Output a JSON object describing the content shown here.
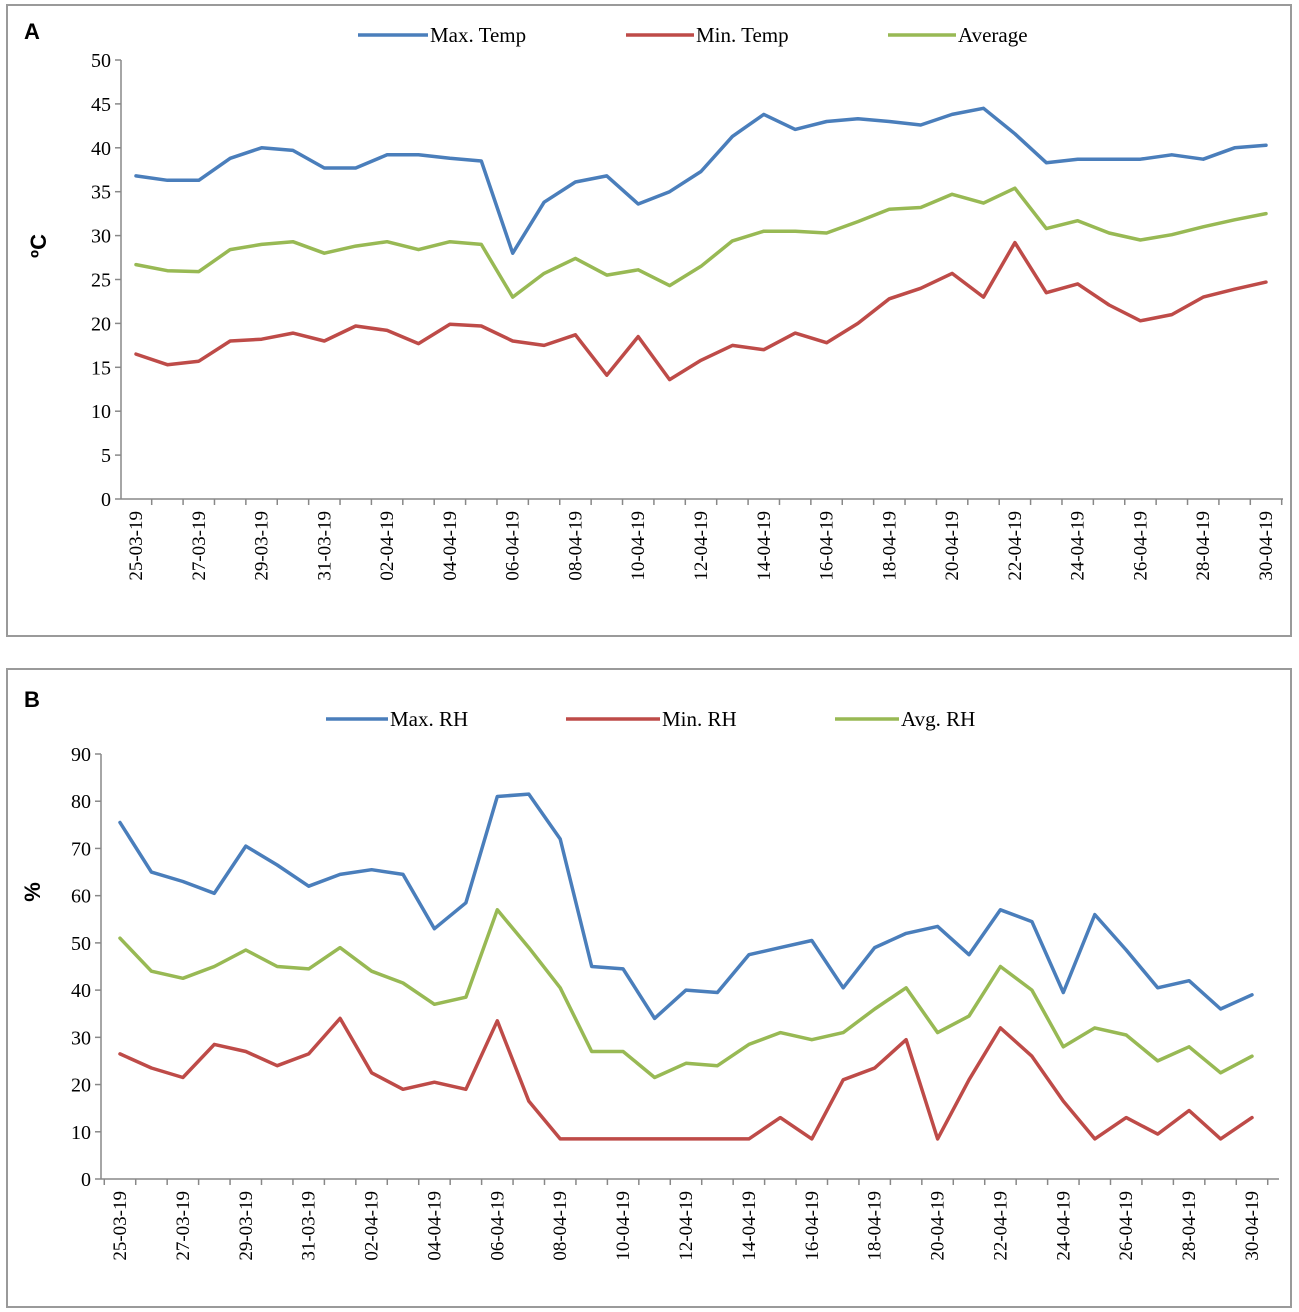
{
  "colors": {
    "max": "#4a7ebb",
    "min": "#be4b48",
    "avg": "#98b954"
  },
  "chart_data": [
    {
      "id": "A",
      "type": "line",
      "panel_label": "A",
      "ylabel": "ºC",
      "ylim": [
        0,
        50
      ],
      "yticks": [
        0,
        5,
        10,
        15,
        20,
        25,
        30,
        35,
        40,
        45,
        50
      ],
      "x": [
        "25-03-19",
        "26-03-19",
        "27-03-19",
        "28-03-19",
        "29-03-19",
        "30-03-19",
        "31-03-19",
        "01-04-19",
        "02-04-19",
        "03-04-19",
        "04-04-19",
        "05-04-19",
        "06-04-19",
        "07-04-19",
        "08-04-19",
        "09-04-19",
        "10-04-19",
        "11-04-19",
        "12-04-19",
        "13-04-19",
        "14-04-19",
        "15-04-19",
        "16-04-19",
        "17-04-19",
        "18-04-19",
        "19-04-19",
        "20-04-19",
        "21-04-19",
        "22-04-19",
        "23-04-19",
        "24-04-19",
        "25-04-19",
        "26-04-19",
        "27-04-19",
        "28-04-19",
        "29-04-19",
        "30-04-19"
      ],
      "xtick_labels": [
        "25-03-19",
        "27-03-19",
        "29-03-19",
        "31-03-19",
        "02-04-19",
        "04-04-19",
        "06-04-19",
        "08-04-19",
        "10-04-19",
        "12-04-19",
        "14-04-19",
        "16-04-19",
        "18-04-19",
        "20-04-19",
        "22-04-19",
        "24-04-19",
        "26-04-19",
        "28-04-19",
        "30-04-19"
      ],
      "series": [
        {
          "name": "Max. Temp",
          "key": "max",
          "values": [
            36.8,
            36.3,
            36.3,
            38.8,
            40.0,
            39.7,
            37.7,
            37.7,
            39.2,
            39.2,
            38.8,
            38.5,
            28.0,
            33.8,
            36.1,
            36.8,
            33.6,
            35.0,
            37.3,
            41.3,
            43.8,
            42.1,
            43.0,
            43.3,
            43.0,
            42.6,
            43.8,
            44.5,
            41.6,
            38.3,
            38.7,
            38.7,
            38.7,
            39.2,
            38.7,
            40.0,
            40.3
          ]
        },
        {
          "name": "Min. Temp",
          "key": "min",
          "values": [
            16.5,
            15.3,
            15.7,
            18.0,
            18.2,
            18.9,
            18.0,
            19.7,
            19.2,
            17.7,
            19.9,
            19.7,
            18.0,
            17.5,
            18.7,
            14.1,
            18.5,
            13.6,
            15.8,
            17.5,
            17.0,
            18.9,
            17.8,
            20.0,
            22.8,
            24.0,
            25.7,
            23.0,
            29.2,
            23.5,
            24.5,
            22.1,
            20.3,
            21.0,
            23.0,
            23.9,
            24.7
          ]
        },
        {
          "name": "Average",
          "key": "avg",
          "values": [
            26.7,
            26.0,
            25.9,
            28.4,
            29.0,
            29.3,
            28.0,
            28.8,
            29.3,
            28.4,
            29.3,
            29.0,
            23.0,
            25.7,
            27.4,
            25.5,
            26.1,
            24.3,
            26.5,
            29.4,
            30.5,
            30.5,
            30.3,
            31.6,
            33.0,
            33.2,
            34.7,
            33.7,
            35.4,
            30.8,
            31.7,
            30.3,
            29.5,
            30.1,
            31.0,
            31.8,
            32.5
          ]
        }
      ]
    },
    {
      "id": "B",
      "type": "line",
      "panel_label": "B",
      "ylabel": "%",
      "ylim": [
        0,
        90
      ],
      "yticks": [
        0,
        10,
        20,
        30,
        40,
        50,
        60,
        70,
        80,
        90
      ],
      "x": [
        "25-03-19",
        "26-03-19",
        "27-03-19",
        "28-03-19",
        "29-03-19",
        "30-03-19",
        "31-03-19",
        "01-04-19",
        "02-04-19",
        "03-04-19",
        "04-04-19",
        "05-04-19",
        "06-04-19",
        "07-04-19",
        "08-04-19",
        "09-04-19",
        "10-04-19",
        "11-04-19",
        "12-04-19",
        "13-04-19",
        "14-04-19",
        "15-04-19",
        "16-04-19",
        "17-04-19",
        "18-04-19",
        "19-04-19",
        "20-04-19",
        "21-04-19",
        "22-04-19",
        "23-04-19",
        "24-04-19",
        "25-04-19",
        "26-04-19",
        "27-04-19",
        "28-04-19",
        "29-04-19",
        "30-04-19"
      ],
      "xtick_labels": [
        "25-03-19",
        "27-03-19",
        "29-03-19",
        "31-03-19",
        "02-04-19",
        "04-04-19",
        "06-04-19",
        "08-04-19",
        "10-04-19",
        "12-04-19",
        "14-04-19",
        "16-04-19",
        "18-04-19",
        "20-04-19",
        "22-04-19",
        "24-04-19",
        "26-04-19",
        "28-04-19",
        "30-04-19"
      ],
      "series": [
        {
          "name": "Max. RH",
          "key": "max",
          "values": [
            75.5,
            65.0,
            63.0,
            60.5,
            70.5,
            66.5,
            62.0,
            64.5,
            65.5,
            64.5,
            53.0,
            58.5,
            81.0,
            81.5,
            72.0,
            45.0,
            44.5,
            34.0,
            40.0,
            39.5,
            47.5,
            49.0,
            50.5,
            40.5,
            49.0,
            52.0,
            53.5,
            47.5,
            57.0,
            54.5,
            39.5,
            56.0,
            48.5,
            40.5,
            42.0,
            36.0,
            39.0
          ]
        },
        {
          "name": "Min. RH",
          "key": "min",
          "values": [
            26.5,
            23.5,
            21.5,
            28.5,
            27.0,
            24.0,
            26.5,
            34.0,
            22.5,
            19.0,
            20.5,
            19.0,
            33.5,
            16.5,
            8.5,
            8.5,
            8.5,
            8.5,
            8.5,
            8.5,
            8.5,
            13.0,
            8.5,
            21.0,
            23.5,
            29.5,
            8.5,
            21.0,
            32.0,
            26.0,
            16.5,
            8.5,
            13.0,
            9.5,
            14.5,
            8.5,
            13.0
          ]
        },
        {
          "name": "Avg. RH",
          "key": "avg",
          "values": [
            51.0,
            44.0,
            42.5,
            45.0,
            48.5,
            45.0,
            44.5,
            49.0,
            44.0,
            41.5,
            37.0,
            38.5,
            57.0,
            49.0,
            40.5,
            27.0,
            27.0,
            21.5,
            24.5,
            24.0,
            28.5,
            31.0,
            29.5,
            31.0,
            36.0,
            40.5,
            31.0,
            34.5,
            45.0,
            40.0,
            28.0,
            32.0,
            30.5,
            25.0,
            28.0,
            22.5,
            26.0
          ]
        }
      ]
    }
  ]
}
